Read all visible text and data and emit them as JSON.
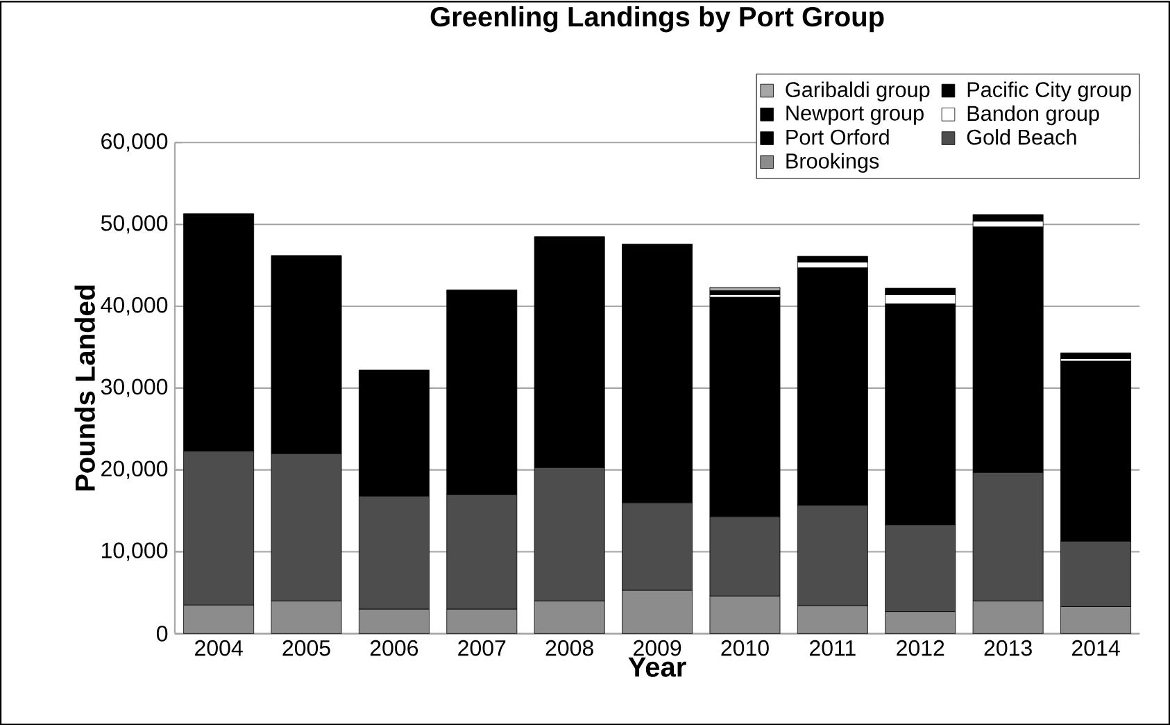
{
  "chart_data": {
    "type": "bar",
    "stacked": true,
    "title": "Greenling Landings by Port Group",
    "xlabel": "Year",
    "ylabel": "Pounds Landed",
    "categories": [
      "2004",
      "2005",
      "2006",
      "2007",
      "2008",
      "2009",
      "2010",
      "2011",
      "2012",
      "2013",
      "2014"
    ],
    "series": [
      {
        "name": "Brookings",
        "color": "#8c8c8c",
        "values": [
          3500,
          4000,
          3000,
          3000,
          4000,
          5300,
          4600,
          3400,
          2700,
          4000,
          3300
        ]
      },
      {
        "name": "Gold Beach",
        "color": "#4d4d4d",
        "values": [
          18800,
          18000,
          13800,
          14000,
          16300,
          10700,
          9700,
          12300,
          10600,
          15700,
          8000
        ]
      },
      {
        "name": "Port Orford",
        "color": "#000000",
        "values": [
          28700,
          23900,
          15100,
          24700,
          27900,
          31400,
          26800,
          29000,
          27000,
          30000,
          22000
        ]
      },
      {
        "name": "Bandon group",
        "color": "#ffffff",
        "values": [
          0,
          0,
          0,
          0,
          0,
          0,
          300,
          700,
          1100,
          700,
          300
        ]
      },
      {
        "name": "Newport group",
        "color": "#000000",
        "values": [
          300,
          300,
          300,
          300,
          300,
          200,
          300,
          700,
          800,
          800,
          700
        ]
      },
      {
        "name": "Pacific City group",
        "color": "#000000",
        "values": [
          0,
          0,
          0,
          0,
          0,
          0,
          200,
          0,
          0,
          0,
          0
        ]
      },
      {
        "name": "Garibaldi group",
        "color": "#a6a6a6",
        "values": [
          0,
          0,
          0,
          0,
          0,
          0,
          400,
          0,
          0,
          0,
          0
        ]
      }
    ],
    "ylim": [
      0,
      60000
    ],
    "yticks": [
      {
        "value": 0,
        "label": "0"
      },
      {
        "value": 10000,
        "label": "10,000"
      },
      {
        "value": 20000,
        "label": "20,000"
      },
      {
        "value": 30000,
        "label": "30,000"
      },
      {
        "value": 40000,
        "label": "40,000"
      },
      {
        "value": 50000,
        "label": "50,000"
      },
      {
        "value": 60000,
        "label": "60,000"
      }
    ],
    "grid": "y",
    "legend": "top right"
  }
}
